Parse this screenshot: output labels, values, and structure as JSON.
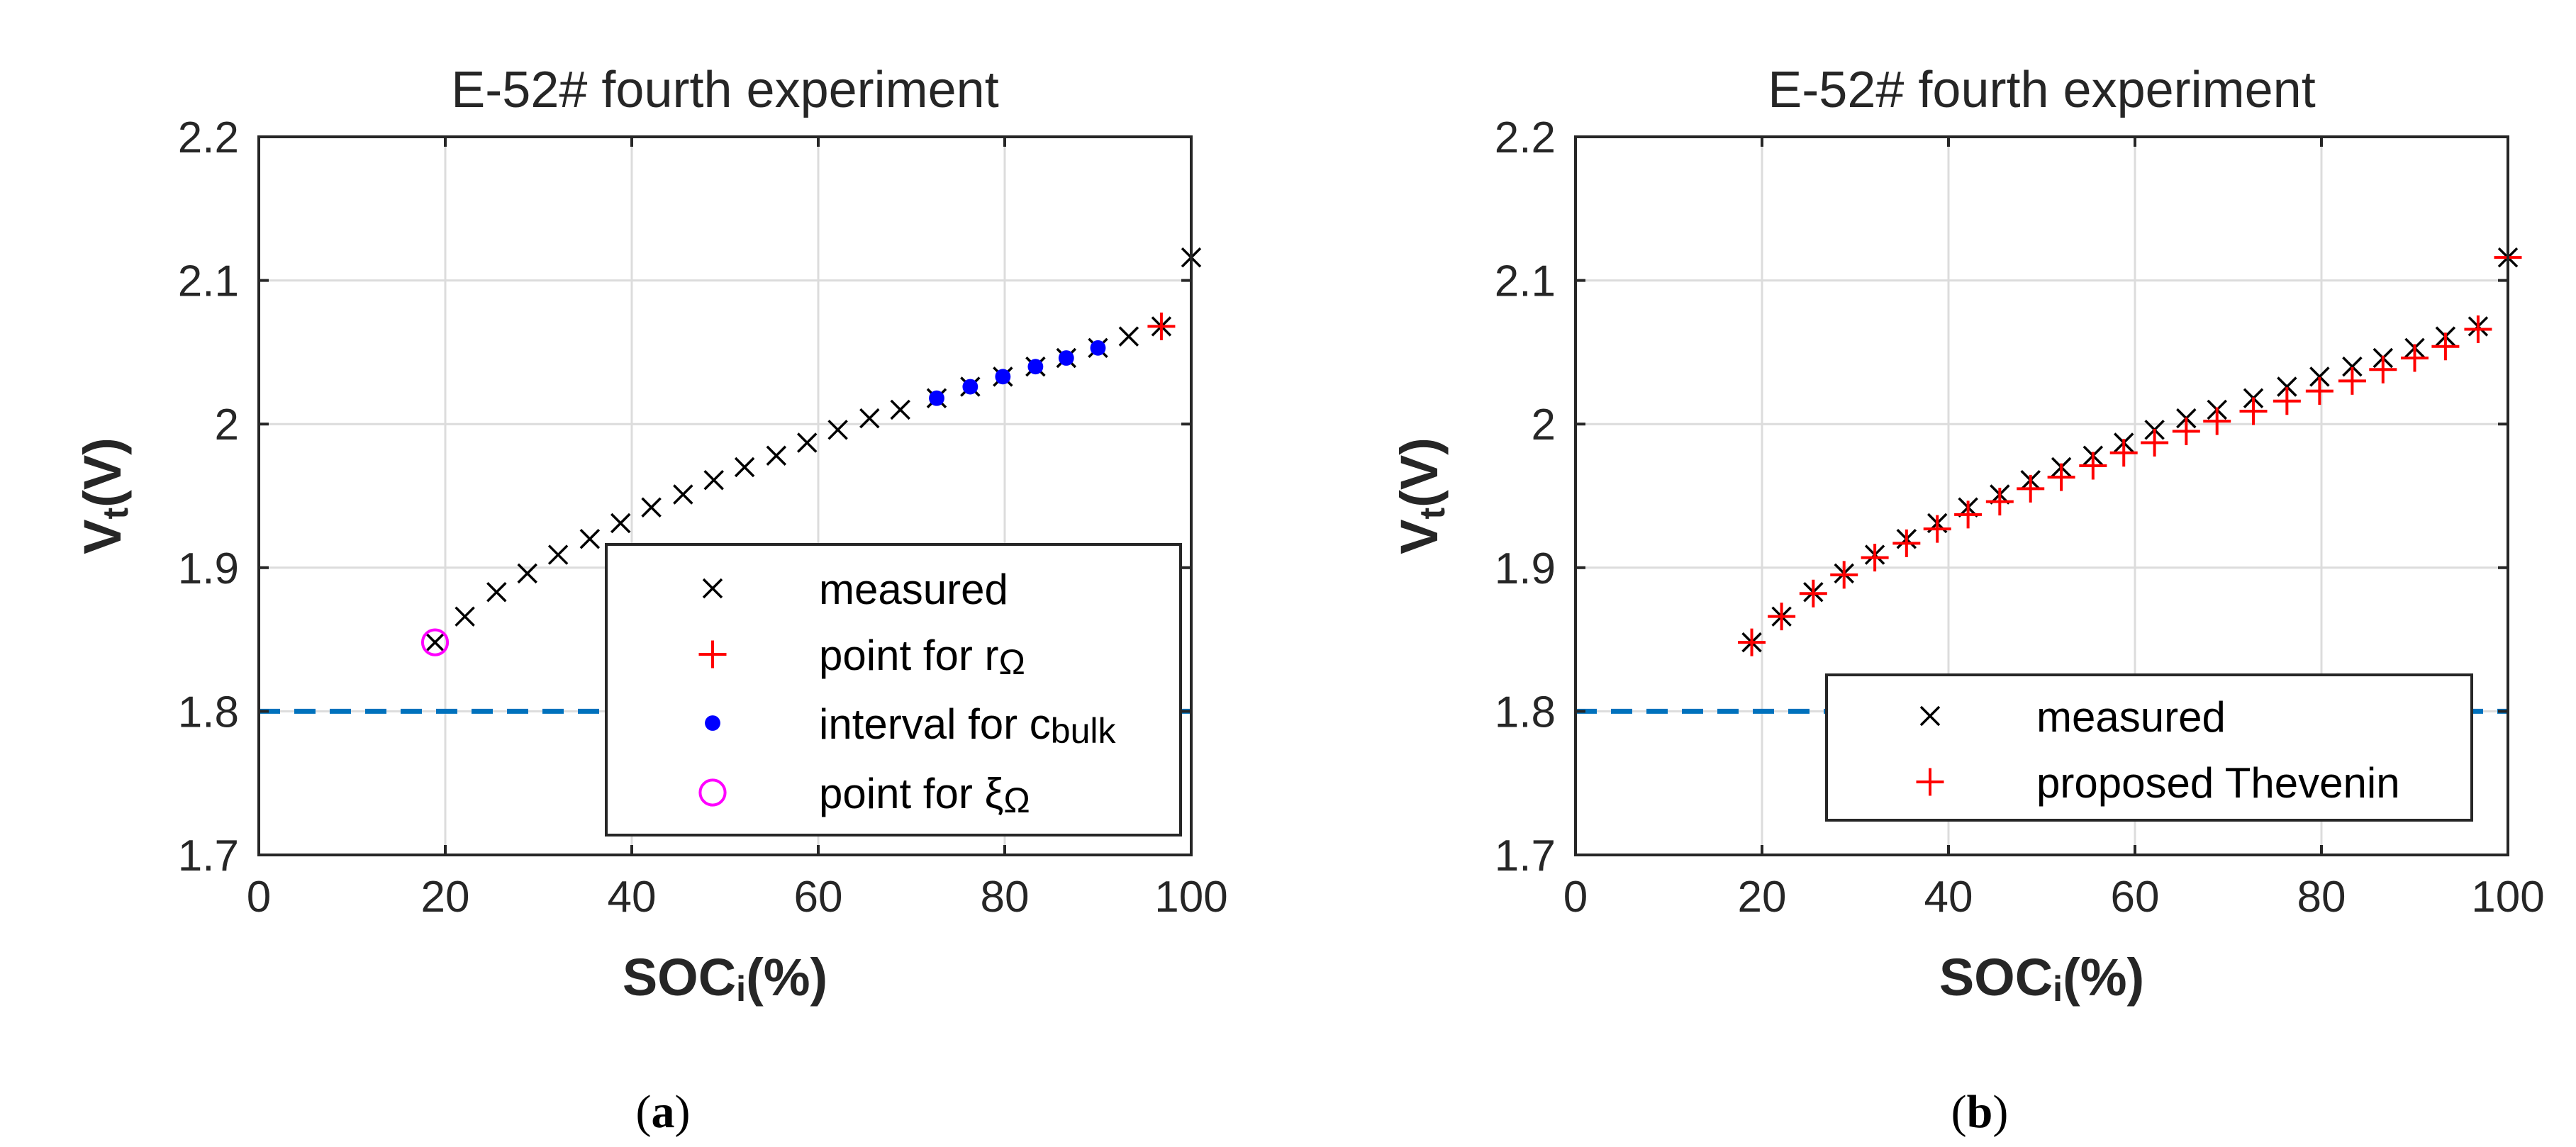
{
  "chart_data": [
    {
      "type": "scatter",
      "panel_label": "a",
      "title": "E-52# fourth experiment",
      "xlabel_main": "SOC",
      "xlabel_sub": "i",
      "xlabel_suffix": "(%)",
      "ylabel_main": "V",
      "ylabel_sub": "t",
      "ylabel_suffix": "(V)",
      "xlim": [
        0,
        100
      ],
      "ylim": [
        1.7,
        2.2
      ],
      "xticks": [
        "0",
        "20",
        "40",
        "60",
        "80",
        "100"
      ],
      "yticks": [
        "1.7",
        "1.8",
        "1.9",
        "2",
        "2.1",
        "2.2"
      ],
      "xtick_values": [
        0,
        20,
        40,
        60,
        80,
        100
      ],
      "ytick_values": [
        1.7,
        1.8,
        1.9,
        2.0,
        2.1,
        2.2
      ],
      "reference_line": {
        "y": 1.8,
        "style": "dashed",
        "color": "#0072bd"
      },
      "series": [
        {
          "name": "measured",
          "marker": "x",
          "color": "#000000",
          "x": [
            18.9,
            22.1,
            25.5,
            28.8,
            32.1,
            35.5,
            38.8,
            42.1,
            45.5,
            48.8,
            52.1,
            55.5,
            58.8,
            62.1,
            65.5,
            68.8,
            72.7,
            76.3,
            79.8,
            83.3,
            86.6,
            90.0,
            93.3,
            96.8,
            100.0
          ],
          "y": [
            1.848,
            1.866,
            1.883,
            1.896,
            1.909,
            1.92,
            1.931,
            1.942,
            1.951,
            1.961,
            1.97,
            1.978,
            1.987,
            1.996,
            2.004,
            2.01,
            2.018,
            2.026,
            2.033,
            2.04,
            2.046,
            2.053,
            2.061,
            2.068,
            2.116
          ]
        },
        {
          "name": "point for rΩ",
          "legend_main": "point for r",
          "legend_sub": "Ω",
          "marker": "+",
          "color": "#ff0000",
          "x": [
            96.8
          ],
          "y": [
            2.068
          ]
        },
        {
          "name": "interval for cbulk",
          "legend_main": "interval for c",
          "legend_sub": "bulk",
          "marker": "dot",
          "color": "#0000ff",
          "x": [
            72.7,
            76.3,
            79.8,
            83.3,
            86.6,
            90.0
          ],
          "y": [
            2.018,
            2.026,
            2.033,
            2.04,
            2.046,
            2.053
          ]
        },
        {
          "name": "point for ξΩ",
          "legend_main": "point for ξ",
          "legend_sub": "Ω",
          "marker": "circle",
          "color": "#ff00ff",
          "x": [
            18.9
          ],
          "y": [
            1.848
          ]
        }
      ]
    },
    {
      "type": "scatter",
      "panel_label": "b",
      "title": "E-52# fourth experiment",
      "xlabel_main": "SOC",
      "xlabel_sub": "i",
      "xlabel_suffix": "(%)",
      "ylabel_main": "V",
      "ylabel_sub": "t",
      "ylabel_suffix": "(V)",
      "xlim": [
        0,
        100
      ],
      "ylim": [
        1.7,
        2.2
      ],
      "xticks": [
        "0",
        "20",
        "40",
        "60",
        "80",
        "100"
      ],
      "yticks": [
        "1.7",
        "1.8",
        "1.9",
        "2",
        "2.1",
        "2.2"
      ],
      "xtick_values": [
        0,
        20,
        40,
        60,
        80,
        100
      ],
      "ytick_values": [
        1.7,
        1.8,
        1.9,
        2.0,
        2.1,
        2.2
      ],
      "reference_line": {
        "y": 1.8,
        "style": "dashed",
        "color": "#0072bd"
      },
      "series": [
        {
          "name": "measured",
          "marker": "x",
          "color": "#000000",
          "x": [
            18.9,
            22.1,
            25.5,
            28.8,
            32.1,
            35.5,
            38.8,
            42.1,
            45.5,
            48.8,
            52.1,
            55.5,
            58.8,
            62.1,
            65.5,
            68.8,
            72.7,
            76.3,
            79.8,
            83.3,
            86.6,
            90.0,
            93.3,
            96.8,
            100.0
          ],
          "y": [
            1.848,
            1.866,
            1.883,
            1.896,
            1.909,
            1.92,
            1.931,
            1.942,
            1.951,
            1.961,
            1.97,
            1.978,
            1.987,
            1.996,
            2.004,
            2.01,
            2.018,
            2.026,
            2.033,
            2.04,
            2.046,
            2.053,
            2.061,
            2.068,
            2.116
          ]
        },
        {
          "name": "proposed Thevenin",
          "marker": "+",
          "color": "#ff0000",
          "x": [
            18.9,
            22.1,
            25.5,
            28.8,
            32.1,
            35.5,
            38.8,
            42.1,
            45.5,
            48.8,
            52.1,
            55.5,
            58.8,
            62.1,
            65.5,
            68.8,
            72.7,
            76.3,
            79.8,
            83.3,
            86.6,
            90.0,
            93.3,
            96.8,
            100.0
          ],
          "y": [
            1.848,
            1.866,
            1.882,
            1.895,
            1.907,
            1.917,
            1.927,
            1.937,
            1.946,
            1.955,
            1.963,
            1.971,
            1.98,
            1.987,
            1.995,
            2.002,
            2.009,
            2.016,
            2.023,
            2.03,
            2.038,
            2.046,
            2.054,
            2.066,
            2.116
          ]
        }
      ]
    }
  ]
}
